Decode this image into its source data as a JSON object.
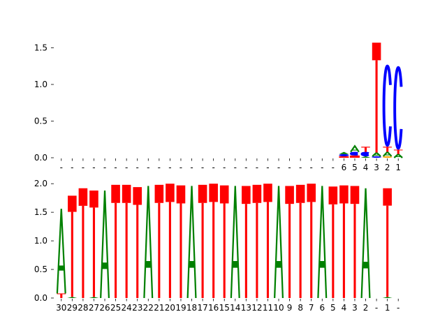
{
  "chart_data": [
    {
      "type": "sequence-logo",
      "panel": "top",
      "ylim": [
        0,
        1.6
      ],
      "yticks": [
        "0.0",
        "0.5",
        "1.0",
        "1.5"
      ],
      "ytick_values": [
        0.0,
        0.5,
        1.0,
        1.5
      ],
      "positions": [
        "-",
        "-",
        "-",
        "-",
        "-",
        "-",
        "-",
        "-",
        "-",
        "-",
        "-",
        "-",
        "-",
        "-",
        "-",
        "-",
        "-",
        "-",
        "-",
        "-",
        "-",
        "-",
        "-",
        "-",
        "-",
        "-",
        "6",
        "5",
        "4",
        "3",
        "2",
        "1"
      ],
      "columns": [
        {
          "position": "6",
          "letters": [
            {
              "base": "T",
              "height": 0.02
            },
            {
              "base": "C",
              "height": 0.03
            },
            {
              "base": "A",
              "height": 0.03
            }
          ]
        },
        {
          "position": "5",
          "letters": [
            {
              "base": "T",
              "height": 0.03
            },
            {
              "base": "C",
              "height": 0.05
            },
            {
              "base": "A",
              "height": 0.08
            }
          ]
        },
        {
          "position": "4",
          "letters": [
            {
              "base": "A",
              "height": 0.02
            },
            {
              "base": "C",
              "height": 0.06
            },
            {
              "base": "T",
              "height": 0.07
            }
          ]
        },
        {
          "position": "3",
          "letters": [
            {
              "base": "C",
              "height": 0.02
            },
            {
              "base": "A",
              "height": 0.05
            },
            {
              "base": "T",
              "height": 1.5
            }
          ]
        },
        {
          "position": "2",
          "letters": [
            {
              "base": "G",
              "height": 0.02
            },
            {
              "base": "A",
              "height": 0.06
            },
            {
              "base": "T",
              "height": 0.07
            },
            {
              "base": "C",
              "height": 1.12
            }
          ]
        },
        {
          "position": "1",
          "letters": [
            {
              "base": "A",
              "height": 0.05
            },
            {
              "base": "T",
              "height": 0.06
            },
            {
              "base": "C",
              "height": 1.14
            }
          ]
        }
      ]
    },
    {
      "type": "sequence-logo",
      "panel": "bottom",
      "ylim": [
        0,
        2.0
      ],
      "yticks": [
        "0.0",
        "0.5",
        "1.0",
        "1.5",
        "2.0"
      ],
      "ytick_values": [
        0.0,
        0.5,
        1.0,
        1.5,
        2.0
      ],
      "positions": [
        "30",
        "29",
        "28",
        "27",
        "26",
        "25",
        "24",
        "23",
        "22",
        "21",
        "20",
        "19",
        "18",
        "17",
        "16",
        "15",
        "14",
        "13",
        "12",
        "11",
        "10",
        "9",
        "8",
        "7",
        "6",
        "5",
        "4",
        "3",
        "2",
        "-",
        "1",
        "-"
      ],
      "columns": [
        {
          "position": "30",
          "letters": [
            {
              "base": "T",
              "height": 0.08
            },
            {
              "base": "A",
              "height": 1.48
            }
          ]
        },
        {
          "position": "29",
          "letters": [
            {
              "base": "A",
              "height": 0.02
            },
            {
              "base": "T",
              "height": 1.77
            }
          ]
        },
        {
          "position": "28",
          "letters": [
            {
              "base": "T",
              "height": 1.92
            }
          ]
        },
        {
          "position": "27",
          "letters": [
            {
              "base": "A",
              "height": 0.02
            },
            {
              "base": "T",
              "height": 1.86
            }
          ]
        },
        {
          "position": "26",
          "letters": [
            {
              "base": "A",
              "height": 1.88
            }
          ]
        },
        {
          "position": "25",
          "letters": [
            {
              "base": "T",
              "height": 1.98
            }
          ]
        },
        {
          "position": "24",
          "letters": [
            {
              "base": "T",
              "height": 1.98
            }
          ]
        },
        {
          "position": "23",
          "letters": [
            {
              "base": "T",
              "height": 1.94
            }
          ]
        },
        {
          "position": "22",
          "letters": [
            {
              "base": "A",
              "height": 1.96
            }
          ]
        },
        {
          "position": "21",
          "letters": [
            {
              "base": "T",
              "height": 1.98
            }
          ]
        },
        {
          "position": "20",
          "letters": [
            {
              "base": "T",
              "height": 2.0
            }
          ]
        },
        {
          "position": "19",
          "letters": [
            {
              "base": "T",
              "height": 1.97
            }
          ]
        },
        {
          "position": "18",
          "letters": [
            {
              "base": "A",
              "height": 1.96
            }
          ]
        },
        {
          "position": "17",
          "letters": [
            {
              "base": "T",
              "height": 1.98
            }
          ]
        },
        {
          "position": "16",
          "letters": [
            {
              "base": "T",
              "height": 2.0
            }
          ]
        },
        {
          "position": "15",
          "letters": [
            {
              "base": "T",
              "height": 1.97
            }
          ]
        },
        {
          "position": "14",
          "letters": [
            {
              "base": "A",
              "height": 1.96
            }
          ]
        },
        {
          "position": "13",
          "letters": [
            {
              "base": "T",
              "height": 1.96
            }
          ]
        },
        {
          "position": "12",
          "letters": [
            {
              "base": "T",
              "height": 1.98
            }
          ]
        },
        {
          "position": "11",
          "letters": [
            {
              "base": "T",
              "height": 2.0
            }
          ]
        },
        {
          "position": "10",
          "letters": [
            {
              "base": "A",
              "height": 1.96
            }
          ]
        },
        {
          "position": "9",
          "letters": [
            {
              "base": "T",
              "height": 1.96
            }
          ]
        },
        {
          "position": "8",
          "letters": [
            {
              "base": "T",
              "height": 1.98
            }
          ]
        },
        {
          "position": "7",
          "letters": [
            {
              "base": "T",
              "height": 2.0
            }
          ]
        },
        {
          "position": "6",
          "letters": [
            {
              "base": "A",
              "height": 1.96
            }
          ]
        },
        {
          "position": "5",
          "letters": [
            {
              "base": "T",
              "height": 1.95
            }
          ]
        },
        {
          "position": "4",
          "letters": [
            {
              "base": "T",
              "height": 1.97
            }
          ]
        },
        {
          "position": "3",
          "letters": [
            {
              "base": "T",
              "height": 1.96
            }
          ]
        },
        {
          "position": "2",
          "letters": [
            {
              "base": "A",
              "height": 1.92
            }
          ]
        },
        {
          "position": "-",
          "letters": []
        },
        {
          "position": "1",
          "letters": [
            {
              "base": "A",
              "height": 0.02
            },
            {
              "base": "T",
              "height": 1.9
            }
          ]
        },
        {
          "position": "-",
          "letters": []
        }
      ]
    }
  ],
  "colors": {
    "A": "#008000",
    "C": "#0000ff",
    "G": "#ffa500",
    "T": "#ff0000"
  }
}
